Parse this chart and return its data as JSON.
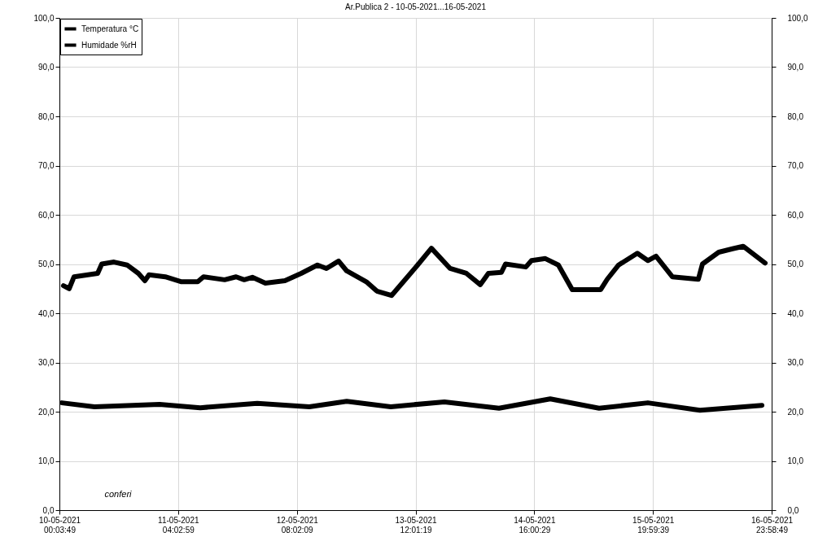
{
  "chart_data": {
    "type": "line",
    "title": "Ar.Publica 2 - 10-05-2021...16-05-2021",
    "xlim": [
      "2021-05-10T00:03",
      "2021-05-16T23:58"
    ],
    "xticks": [
      {
        "value": "2021-05-10T00:03",
        "label": "10-05-2021\n00:03:49"
      },
      {
        "value": "2021-05-11T04:02",
        "label": "11-05-2021\n04:02:59"
      },
      {
        "value": "2021-05-12T08:02",
        "label": "12-05-2021\n08:02:09"
      },
      {
        "value": "2021-05-13T12:01",
        "label": "13-05-2021\n12:01:19"
      },
      {
        "value": "2021-05-14T16:00",
        "label": "14-05-2021\n16:00:29"
      },
      {
        "value": "2021-05-15T19:59",
        "label": "15-05-2021\n19:59:39"
      },
      {
        "value": "2021-05-16T23:58",
        "label": "16-05-2021\n23:58:49"
      }
    ],
    "ylim": [
      0,
      100
    ],
    "yticks": [
      {
        "value": 0,
        "label": "0,0"
      },
      {
        "value": 10,
        "label": "10,0"
      },
      {
        "value": 20,
        "label": "20,0"
      },
      {
        "value": 30,
        "label": "30,0"
      },
      {
        "value": 40,
        "label": "40,0"
      },
      {
        "value": 50,
        "label": "50,0"
      },
      {
        "value": 60,
        "label": "60,0"
      },
      {
        "value": 70,
        "label": "70,0"
      },
      {
        "value": 80,
        "label": "80,0"
      },
      {
        "value": 90,
        "label": "90,0"
      },
      {
        "value": 100,
        "label": "100,0"
      }
    ],
    "y2lim": [
      0,
      100
    ],
    "y2ticks": [
      {
        "value": 0,
        "label": "0,0"
      },
      {
        "value": 10,
        "label": "10,0"
      },
      {
        "value": 20,
        "label": "20,0"
      },
      {
        "value": 30,
        "label": "30,0"
      },
      {
        "value": 40,
        "label": "40,0"
      },
      {
        "value": 50,
        "label": "50,0"
      },
      {
        "value": 60,
        "label": "60,0"
      },
      {
        "value": 70,
        "label": "70,0"
      },
      {
        "value": 80,
        "label": "80,0"
      },
      {
        "value": 90,
        "label": "90,0"
      },
      {
        "value": 100,
        "label": "100,0"
      }
    ],
    "grid": true,
    "legend": "top left",
    "marker": "none",
    "line_style": "solid",
    "annotations": [
      "conferi"
    ],
    "series": [
      {
        "name": "Temperatura °C",
        "color": "#000000",
        "x": [
          "2021-05-10T00:38",
          "2021-05-10T08:18",
          "2021-05-10T23:39",
          "2021-05-11T09:15",
          "2021-05-11T22:41",
          "2021-05-12T10:58",
          "2021-05-12T19:47",
          "2021-05-13T06:10",
          "2021-05-13T18:49",
          "2021-05-14T07:41",
          "2021-05-14T19:46",
          "2021-05-15T07:17",
          "2021-05-15T18:47",
          "2021-05-16T07:04",
          "2021-05-16T21:40"
        ],
        "values": [
          21.8,
          21.0,
          21.5,
          20.8,
          21.7,
          21.0,
          22.1,
          21.0,
          22.0,
          20.7,
          22.6,
          20.7,
          21.8,
          20.3,
          21.3
        ]
      },
      {
        "name": "Humidade %rH",
        "color": "#000000",
        "x": [
          "2021-05-10T01:00",
          "2021-05-10T02:21",
          "2021-05-10T03:30",
          "2021-05-10T09:04",
          "2021-05-10T10:02",
          "2021-05-10T12:55",
          "2021-05-10T16:00",
          "2021-05-10T18:40",
          "2021-05-10T20:12",
          "2021-05-10T21:10",
          "2021-05-11T01:00",
          "2021-05-11T04:50",
          "2021-05-11T08:40",
          "2021-05-11T10:01",
          "2021-05-11T15:00",
          "2021-05-11T17:42",
          "2021-05-11T19:37",
          "2021-05-11T21:32",
          "2021-05-12T00:36",
          "2021-05-12T05:13",
          "2021-05-12T09:03",
          "2021-05-12T12:53",
          "2021-05-12T15:00",
          "2021-05-12T17:52",
          "2021-05-12T19:47",
          "2021-05-13T00:24",
          "2021-05-13T02:54",
          "2021-05-13T06:21",
          "2021-05-13T12:30",
          "2021-05-13T15:45",
          "2021-05-13T20:10",
          "2021-05-14T00:00",
          "2021-05-14T03:16",
          "2021-05-14T05:11",
          "2021-05-14T08:15",
          "2021-05-14T09:13",
          "2021-05-14T14:01",
          "2021-05-14T15:21",
          "2021-05-14T18:37",
          "2021-05-14T21:41",
          "2021-05-15T00:57",
          "2021-05-15T07:40",
          "2021-05-15T09:12",
          "2021-05-15T11:53",
          "2021-05-15T16:18",
          "2021-05-15T18:47",
          "2021-05-15T20:42",
          "2021-05-16T00:33",
          "2021-05-16T06:41",
          "2021-05-16T07:39",
          "2021-05-16T11:29",
          "2021-05-16T14:45",
          "2021-05-16T17:15",
          "2021-05-16T22:26"
        ],
        "values": [
          45.6,
          45.0,
          47.4,
          48.1,
          50.0,
          50.4,
          49.8,
          48.1,
          46.6,
          47.8,
          47.4,
          46.4,
          46.4,
          47.4,
          46.8,
          47.4,
          46.8,
          47.3,
          46.1,
          46.6,
          48.1,
          49.8,
          49.1,
          50.6,
          48.6,
          46.4,
          44.5,
          43.6,
          49.8,
          53.2,
          49.1,
          48.1,
          45.8,
          48.1,
          48.3,
          50.0,
          49.4,
          50.7,
          51.1,
          49.8,
          44.8,
          44.8,
          46.9,
          49.8,
          52.2,
          50.7,
          51.6,
          47.4,
          46.9,
          50.0,
          52.4,
          53.1,
          53.6,
          50.2
        ]
      }
    ]
  }
}
